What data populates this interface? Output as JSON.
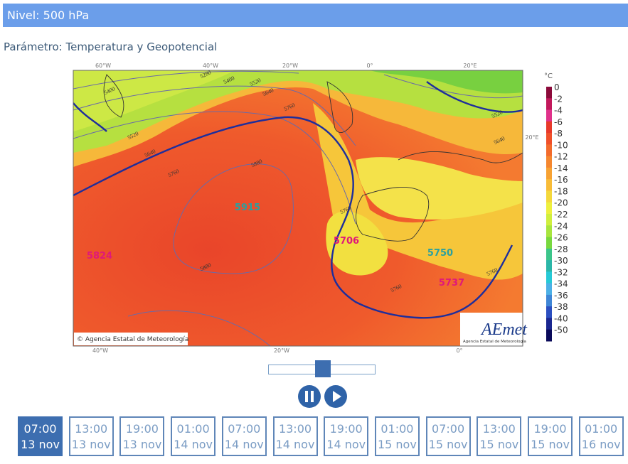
{
  "header": {
    "title": "Nivel: 500 hPa"
  },
  "parameter": "Parámetro: Temperatura y Geopotencial",
  "map": {
    "top_axis": [
      "60°W",
      "40°W",
      "20°W",
      "0°",
      "20°E"
    ],
    "bottom_axis": [
      "40°W",
      "20°W",
      "0°"
    ],
    "right_axis": "20°E",
    "contour_labels": [
      "5280",
      "5400",
      "5520",
      "5640",
      "5760",
      "5400",
      "5520",
      "5640",
      "5760",
      "5880",
      "5880",
      "5760",
      "5760",
      "5760",
      "5520",
      "5640"
    ],
    "pressure_labels": [
      "5915",
      "5706",
      "5750",
      "5737",
      "5824"
    ],
    "copyright": "Agencia Estatal de Meteorología",
    "logo": "AEmet",
    "logo_caption": "Agencia Estatal de Meteorología"
  },
  "colorbar": {
    "unit": "°C",
    "labels": [
      "0",
      "-2",
      "-4",
      "-6",
      "-8",
      "-10",
      "-12",
      "-14",
      "-16",
      "-18",
      "-20",
      "-22",
      "-24",
      "-26",
      "-28",
      "-30",
      "-32",
      "-34",
      "-36",
      "-38",
      "-40",
      "-50"
    ],
    "colors": [
      "#8b0a3a",
      "#c2185b",
      "#e0318a",
      "#e8392a",
      "#f0502a",
      "#f36b2c",
      "#f5872f",
      "#f7a233",
      "#f8bc38",
      "#f4d83c",
      "#eef03e",
      "#d0ef3e",
      "#a8e53e",
      "#78d83e",
      "#3cc58a",
      "#2bb6a8",
      "#26c9d6",
      "#4cb0e6",
      "#3f86d6",
      "#2b4fc0",
      "#1a2790",
      "#0a0a5a"
    ]
  },
  "timeline": [
    {
      "time": "07:00",
      "date": "13 nov"
    },
    {
      "time": "13:00",
      "date": "13 nov"
    },
    {
      "time": "19:00",
      "date": "13 nov"
    },
    {
      "time": "01:00",
      "date": "14 nov"
    },
    {
      "time": "07:00",
      "date": "14 nov"
    },
    {
      "time": "13:00",
      "date": "14 nov"
    },
    {
      "time": "19:00",
      "date": "14 nov"
    },
    {
      "time": "01:00",
      "date": "15 nov"
    },
    {
      "time": "07:00",
      "date": "15 nov"
    },
    {
      "time": "13:00",
      "date": "15 nov"
    },
    {
      "time": "19:00",
      "date": "15 nov"
    },
    {
      "time": "01:00",
      "date": "16 nov"
    }
  ]
}
